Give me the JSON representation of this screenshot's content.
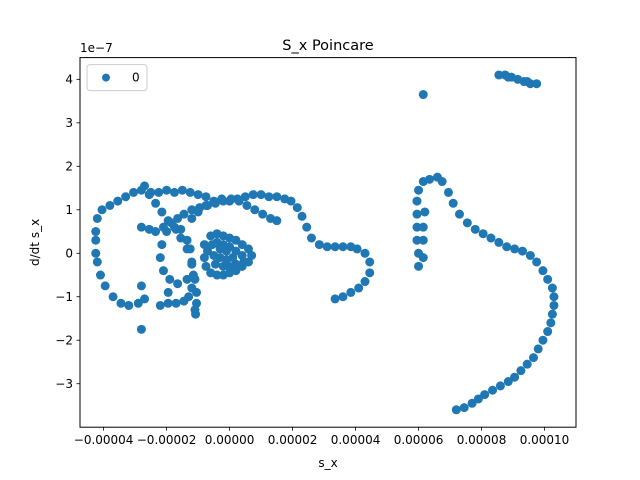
{
  "chart_data": {
    "type": "scatter",
    "title": "S_x Poincare",
    "xlabel": "s_x",
    "ylabel": "d/dt s_x",
    "y_multiplier_label": "1e−7",
    "xlim": [
      -4.75e-05,
      0.00011
    ],
    "ylim": [
      -4.0,
      4.5
    ],
    "x_ticks": [
      -4e-05,
      -2e-05,
      0.0,
      2e-05,
      4e-05,
      6e-05,
      8e-05,
      0.0001
    ],
    "x_tick_labels": [
      "−0.00004",
      "−0.00002",
      "0.00000",
      "0.00002",
      "0.00004",
      "0.00006",
      "0.00008",
      "0.00010"
    ],
    "y_ticks": [
      -3,
      -2,
      -1,
      0,
      1,
      2,
      3,
      4
    ],
    "y_tick_labels": [
      "−3",
      "−2",
      "−1",
      "0",
      "1",
      "2",
      "3",
      "4"
    ],
    "grid": false,
    "legend": {
      "position": "top-left",
      "entries": [
        "0"
      ]
    },
    "marker_color": "#1f77b4",
    "series": [
      {
        "name": "0",
        "points": [
          [
            -4.25e-05,
            0.0
          ],
          [
            -4.25e-05,
            0.5
          ],
          [
            -4.2e-05,
            0.8
          ],
          [
            -4.05e-05,
            1.0
          ],
          [
            -3.8e-05,
            1.1
          ],
          [
            -3.55e-05,
            1.2
          ],
          [
            -3.3e-05,
            1.3
          ],
          [
            -3.05e-05,
            1.4
          ],
          [
            -2.8e-05,
            1.45
          ],
          [
            -2.5e-05,
            1.4
          ],
          [
            -2.25e-05,
            1.4
          ],
          [
            -2e-05,
            1.45
          ],
          [
            -1.75e-05,
            1.4
          ],
          [
            -1.5e-05,
            1.45
          ],
          [
            -1.25e-05,
            1.4
          ],
          [
            -1e-05,
            1.35
          ],
          [
            -7.5e-06,
            1.3
          ],
          [
            -4.25e-05,
            0.3
          ],
          [
            -4.2e-05,
            -0.2
          ],
          [
            -4.1e-05,
            -0.5
          ],
          [
            -3.95e-05,
            -0.75
          ],
          [
            -3.7e-05,
            -1.0
          ],
          [
            -3.45e-05,
            -1.15
          ],
          [
            -3.2e-05,
            -1.2
          ],
          [
            -2.9e-05,
            -1.15
          ],
          [
            -2.7e-05,
            -1.05
          ],
          [
            -2.2e-05,
            -1.2
          ],
          [
            -1.95e-05,
            -1.15
          ],
          [
            -1.7e-05,
            -1.15
          ],
          [
            -1.45e-05,
            -1.1
          ],
          [
            -1.3e-05,
            -1.0
          ],
          [
            -1.2e-05,
            -0.8
          ],
          [
            -1.15e-05,
            -0.5
          ],
          [
            -1.2e-05,
            -0.2
          ],
          [
            -1.25e-05,
            0.1
          ],
          [
            -1.35e-05,
            0.3
          ],
          [
            -1.55e-05,
            0.55
          ],
          [
            -1.75e-05,
            0.6
          ],
          [
            -2e-05,
            0.5
          ],
          [
            -2.15e-05,
            0.2
          ],
          [
            -2.2e-05,
            -0.1
          ],
          [
            -2.1e-05,
            -0.4
          ],
          [
            -1.9e-05,
            -0.6
          ],
          [
            -1.65e-05,
            -0.7
          ],
          [
            -1.35e-05,
            -0.6
          ],
          [
            -2.8e-05,
            0.6
          ],
          [
            -2.55e-05,
            0.55
          ],
          [
            -2.35e-05,
            0.5
          ],
          [
            -2.1e-05,
            0.6
          ],
          [
            -1.85e-05,
            0.7
          ],
          [
            -1.65e-05,
            0.8
          ],
          [
            -1.45e-05,
            0.9
          ],
          [
            -1.2e-05,
            1.0
          ],
          [
            -9.5e-06,
            1.05
          ],
          [
            -7e-06,
            1.1
          ],
          [
            -4.5e-06,
            1.15
          ],
          [
            -2e-06,
            1.2
          ],
          [
            0.0,
            1.2
          ],
          [
            2.5e-06,
            1.25
          ],
          [
            5e-06,
            1.3
          ],
          [
            7.5e-06,
            1.35
          ],
          [
            1e-05,
            1.35
          ],
          [
            1.25e-05,
            1.3
          ],
          [
            1.5e-05,
            1.3
          ],
          [
            1.75e-05,
            1.25
          ],
          [
            1.95e-05,
            1.2
          ],
          [
            2.15e-05,
            1.05
          ],
          [
            2.3e-05,
            0.85
          ],
          [
            2.45e-05,
            0.6
          ],
          [
            2.6e-05,
            0.35
          ],
          [
            2.85e-05,
            0.2
          ],
          [
            3.1e-05,
            0.15
          ],
          [
            3.35e-05,
            0.15
          ],
          [
            3.6e-05,
            0.15
          ],
          [
            3.85e-05,
            0.15
          ],
          [
            4.05e-05,
            0.1
          ],
          [
            4.3e-05,
            0.0
          ],
          [
            4.45e-05,
            -0.2
          ],
          [
            4.45e-05,
            -0.45
          ],
          [
            4.3e-05,
            -0.65
          ],
          [
            4.1e-05,
            -0.8
          ],
          [
            3.85e-05,
            -0.9
          ],
          [
            3.6e-05,
            -1.0
          ],
          [
            3.35e-05,
            -1.05
          ],
          [
            -2.7e-05,
            1.55
          ],
          [
            -2.55e-05,
            1.35
          ],
          [
            -2.35e-05,
            1.15
          ],
          [
            -2.15e-05,
            0.95
          ],
          [
            -1.95e-05,
            0.75
          ],
          [
            -1.7e-05,
            0.55
          ],
          [
            -1.55e-05,
            0.35
          ],
          [
            -1.35e-05,
            0.1
          ],
          [
            -1.2e-05,
            -0.25
          ],
          [
            -1.1e-05,
            -0.6
          ],
          [
            -1.05e-05,
            -0.9
          ],
          [
            -1.05e-05,
            -1.15
          ],
          [
            -1.1e-05,
            -1.3
          ],
          [
            -1.08e-05,
            -1.4
          ],
          [
            -1.2e-05,
            0.8
          ],
          [
            -1e-05,
            0.95
          ],
          [
            -7.5e-06,
            1.1
          ],
          [
            -5e-06,
            1.2
          ],
          [
            -2.5e-06,
            1.25
          ],
          [
            5e-07,
            1.25
          ],
          [
            3e-06,
            1.2
          ],
          [
            5.5e-06,
            1.1
          ],
          [
            8e-06,
            1.0
          ],
          [
            1.05e-05,
            0.9
          ],
          [
            1.3e-05,
            0.8
          ],
          [
            1.5e-05,
            0.75
          ],
          [
            -8e-06,
            0.2
          ],
          [
            -6e-06,
            0.4
          ],
          [
            -4e-06,
            0.45
          ],
          [
            -2e-06,
            0.4
          ],
          [
            0.0,
            0.35
          ],
          [
            2e-06,
            0.3
          ],
          [
            4e-06,
            0.2
          ],
          [
            6e-06,
            0.1
          ],
          [
            7e-06,
            -0.05
          ],
          [
            6e-06,
            -0.2
          ],
          [
            4e-06,
            -0.3
          ],
          [
            2e-06,
            -0.4
          ],
          [
            0.0,
            -0.45
          ],
          [
            -2e-06,
            -0.5
          ],
          [
            -4e-06,
            -0.5
          ],
          [
            -6e-06,
            -0.45
          ],
          [
            -7.5e-06,
            -0.3
          ],
          [
            -8e-06,
            -0.1
          ],
          [
            -7e-06,
            0.05
          ],
          [
            -5.5e-06,
            0.2
          ],
          [
            -4e-06,
            0.25
          ],
          [
            -2e-06,
            0.2
          ],
          [
            0.0,
            0.15
          ],
          [
            2e-06,
            0.05
          ],
          [
            4e-06,
            -0.05
          ],
          [
            4.5e-06,
            -0.2
          ],
          [
            2e-06,
            -0.25
          ],
          [
            0.0,
            -0.3
          ],
          [
            -2e-06,
            -0.3
          ],
          [
            -4.5e-06,
            -0.25
          ],
          [
            -5e-06,
            -0.05
          ],
          [
            -3e-06,
            0.1
          ],
          [
            -1e-06,
            0.05
          ],
          [
            1e-06,
            -0.1
          ],
          [
            -1e-06,
            -0.15
          ],
          [
            -3e-06,
            -0.1
          ],
          [
            -2.8e-05,
            -0.75
          ],
          [
            -2.8e-05,
            -1.75
          ],
          [
            -1.95e-05,
            -0.9
          ],
          [
            6e-05,
            -0.3
          ],
          [
            6e-05,
            0.0
          ],
          [
            5.95e-05,
            0.3
          ],
          [
            5.95e-05,
            0.6
          ],
          [
            5.95e-05,
            0.9
          ],
          [
            5.95e-05,
            1.2
          ],
          [
            6e-05,
            1.45
          ],
          [
            6.15e-05,
            1.65
          ],
          [
            6.35e-05,
            1.7
          ],
          [
            6.6e-05,
            1.75
          ],
          [
            6.75e-05,
            1.65
          ],
          [
            6.95e-05,
            1.4
          ],
          [
            7.1e-05,
            1.15
          ],
          [
            7.3e-05,
            0.9
          ],
          [
            7.55e-05,
            0.7
          ],
          [
            7.8e-05,
            0.55
          ],
          [
            8.05e-05,
            0.45
          ],
          [
            8.3e-05,
            0.35
          ],
          [
            8.55e-05,
            0.25
          ],
          [
            8.8e-05,
            0.15
          ],
          [
            9.05e-05,
            0.1
          ],
          [
            9.3e-05,
            0.05
          ],
          [
            9.55e-05,
            -0.05
          ],
          [
            9.75e-05,
            -0.2
          ],
          [
            9.95e-05,
            -0.4
          ],
          [
            0.000101,
            -0.6
          ],
          [
            0.0001025,
            -0.8
          ],
          [
            0.000103,
            -1.0
          ],
          [
            0.000103,
            -1.2
          ],
          [
            0.0001025,
            -1.4
          ],
          [
            0.000102,
            -1.6
          ],
          [
            0.000101,
            -1.8
          ],
          [
            9.95e-05,
            -2.0
          ],
          [
            9.8e-05,
            -2.2
          ],
          [
            9.65e-05,
            -2.4
          ],
          [
            9.45e-05,
            -2.55
          ],
          [
            9.25e-05,
            -2.7
          ],
          [
            9.05e-05,
            -2.85
          ],
          [
            8.85e-05,
            -2.95
          ],
          [
            8.6e-05,
            -3.05
          ],
          [
            8.35e-05,
            -3.15
          ],
          [
            8.1e-05,
            -3.25
          ],
          [
            7.9e-05,
            -3.35
          ],
          [
            7.7e-05,
            -3.45
          ],
          [
            7.45e-05,
            -3.55
          ],
          [
            7.2e-05,
            -3.6
          ],
          [
            6.2e-05,
            0.95
          ],
          [
            6.15e-05,
            0.6
          ],
          [
            6.15e-05,
            0.3
          ],
          [
            6.15e-05,
            -0.1
          ],
          [
            6.15e-05,
            3.65
          ],
          [
            8.55e-05,
            4.1
          ],
          [
            8.75e-05,
            4.1
          ],
          [
            8.95e-05,
            4.05
          ],
          [
            9.15e-05,
            4.0
          ],
          [
            9.35e-05,
            3.95
          ],
          [
            9.55e-05,
            3.9
          ],
          [
            9.75e-05,
            3.9
          ],
          [
            8.85e-05,
            4.05
          ],
          [
            9.45e-05,
            3.95
          ]
        ]
      }
    ]
  }
}
